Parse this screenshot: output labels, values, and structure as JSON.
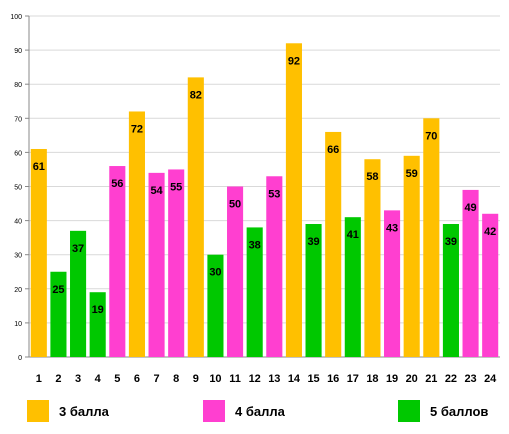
{
  "chart_data": {
    "type": "bar",
    "title": "",
    "xlabel": "",
    "ylabel": "",
    "ylim": [
      0,
      100
    ],
    "yticks": [
      0,
      10,
      20,
      30,
      40,
      50,
      60,
      70,
      80,
      90,
      100
    ],
    "grid": true,
    "legend_position": "bottom",
    "categories": [
      "1",
      "2",
      "3",
      "4",
      "5",
      "6",
      "7",
      "8",
      "9",
      "10",
      "11",
      "12",
      "13",
      "14",
      "15",
      "16",
      "17",
      "18",
      "19",
      "20",
      "21",
      "22",
      "23",
      "24"
    ],
    "values": [
      61,
      25,
      37,
      19,
      56,
      72,
      54,
      55,
      82,
      30,
      50,
      38,
      53,
      92,
      39,
      66,
      41,
      58,
      43,
      59,
      70,
      39,
      49,
      42
    ],
    "groups": [
      "3 балла",
      "5 баллов",
      "5 баллов",
      "5 баллов",
      "4 балла",
      "3 балла",
      "4 балла",
      "4 балла",
      "3 балла",
      "5 баллов",
      "4 балла",
      "5 баллов",
      "4 балла",
      "3 балла",
      "5 баллов",
      "3 балла",
      "5 баллов",
      "3 балла",
      "4 балла",
      "3 балла",
      "3 балла",
      "5 баллов",
      "4 балла",
      "4 балла"
    ],
    "legend": [
      {
        "name": "3 балла",
        "color": "#FFC000"
      },
      {
        "name": "4 балла",
        "color": "#FF3FD0"
      },
      {
        "name": "5 баллов",
        "color": "#00C800"
      }
    ]
  }
}
